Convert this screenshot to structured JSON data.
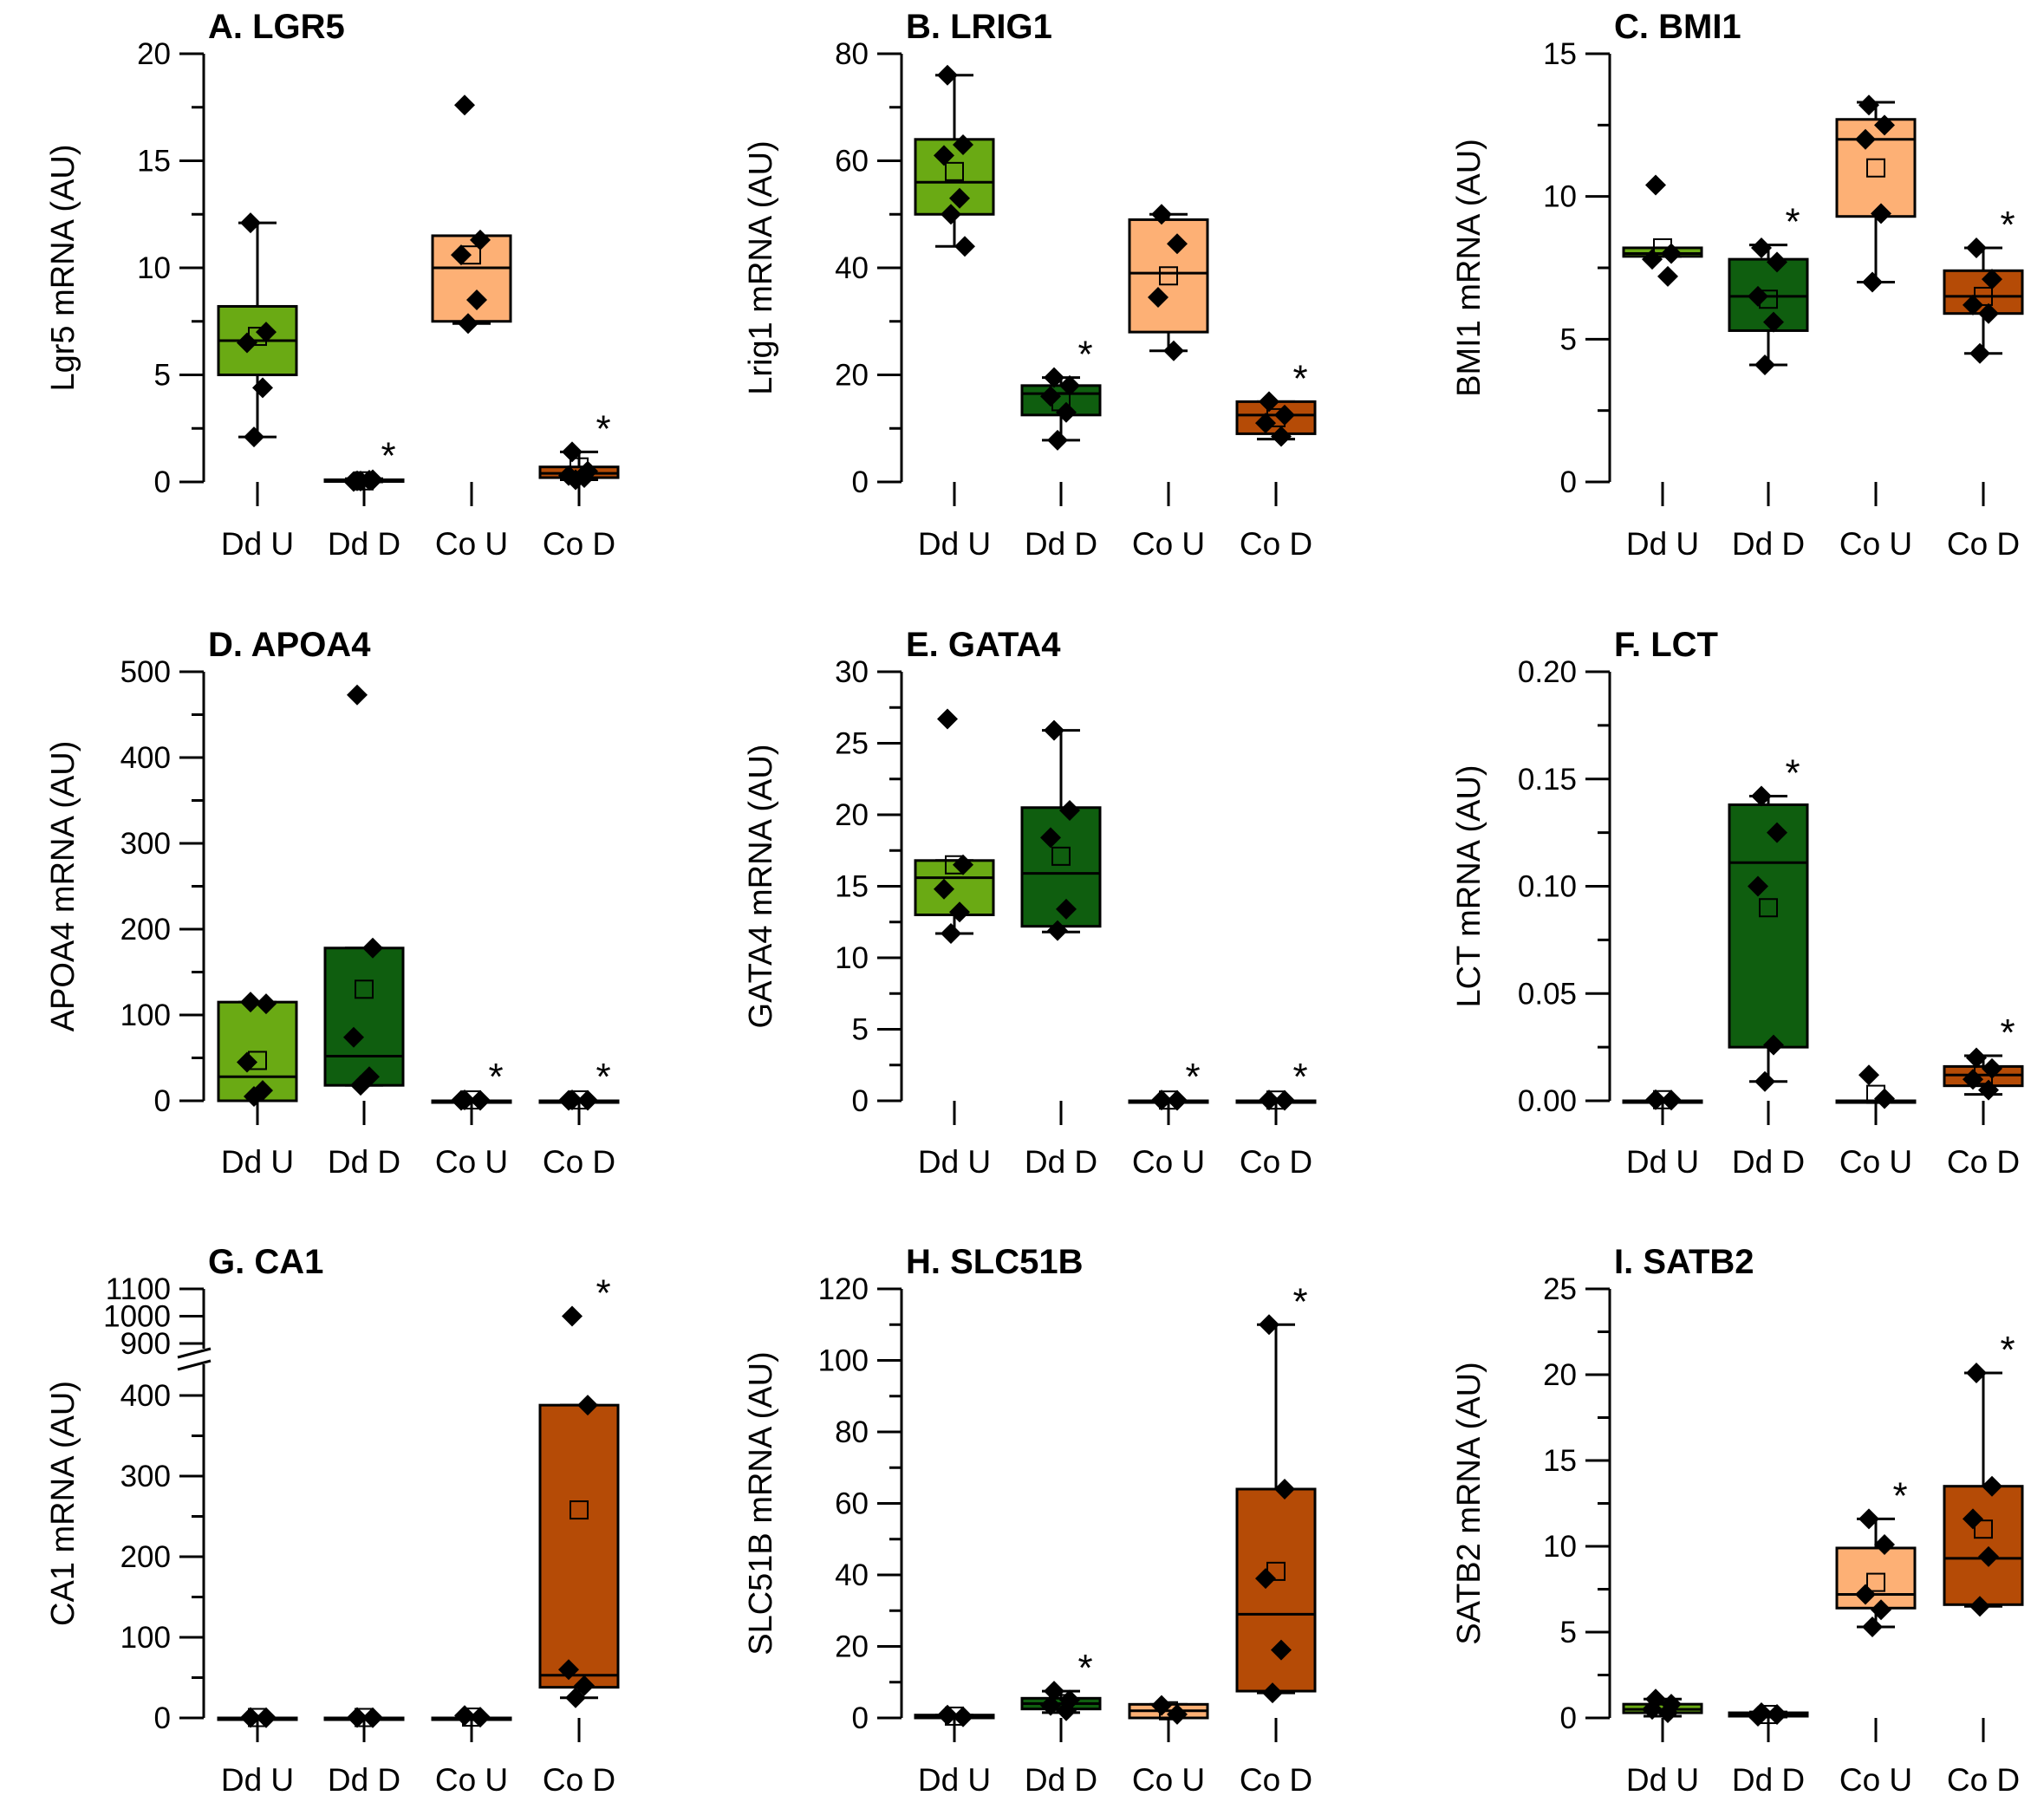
{
  "colors": {
    "Dd U": "#6aaa14",
    "Dd D": "#0f5e0f",
    "Co U": "#fdb075",
    "Co D": "#b54b06"
  },
  "chart_data": [
    {
      "type": "box",
      "title": "A. LGR5",
      "ylabel": "Lgr5 mRNA (AU)",
      "ylim": [
        0,
        20
      ],
      "yticks": [
        0,
        5,
        10,
        15,
        20
      ],
      "ytick_labels": [
        "0",
        "5",
        "10",
        "15",
        "20"
      ],
      "categories": [
        "Dd U",
        "Dd D",
        "Co U",
        "Co D"
      ],
      "boxes": [
        {
          "q1": 5.0,
          "median": 6.6,
          "q3": 8.2,
          "whisker_low": 2.1,
          "whisker_high": 12.1,
          "mean": 6.8,
          "points": [
            12.1,
            7.0,
            6.5,
            4.4,
            2.1
          ],
          "star": false
        },
        {
          "q1": 0.02,
          "median": 0.05,
          "q3": 0.1,
          "whisker_low": 0.0,
          "whisker_high": 0.15,
          "mean": 0.05,
          "points": [
            0.05,
            0.1,
            0.02,
            0.08,
            0.04
          ],
          "star": true
        },
        {
          "q1": 7.5,
          "median": 10.0,
          "q3": 11.5,
          "whisker_low": 7.4,
          "whisker_high": 11.5,
          "mean": 10.6,
          "points": [
            17.6,
            11.3,
            10.6,
            8.5,
            7.4
          ],
          "star": false
        },
        {
          "q1": 0.2,
          "median": 0.4,
          "q3": 0.7,
          "whisker_low": 0.1,
          "whisker_high": 1.4,
          "mean": 0.7,
          "points": [
            1.4,
            0.5,
            0.3,
            0.2,
            0.1
          ],
          "star": true
        }
      ]
    },
    {
      "type": "box",
      "title": "B. LRIG1",
      "ylabel": "Lrig1 mRNA (AU)",
      "ylim": [
        0,
        80
      ],
      "yticks": [
        0,
        20,
        40,
        60,
        80
      ],
      "ytick_labels": [
        "0",
        "20",
        "40",
        "60",
        "80"
      ],
      "categories": [
        "Dd U",
        "Dd D",
        "Co U",
        "Co D"
      ],
      "boxes": [
        {
          "q1": 50,
          "median": 56,
          "q3": 64,
          "whisker_low": 44,
          "whisker_high": 76,
          "mean": 58,
          "points": [
            76,
            63,
            61,
            53,
            50,
            44
          ],
          "star": false
        },
        {
          "q1": 12.5,
          "median": 16.5,
          "q3": 18,
          "whisker_low": 7.8,
          "whisker_high": 19.5,
          "mean": 15,
          "points": [
            19.5,
            18,
            16,
            13,
            7.8
          ],
          "star": true
        },
        {
          "q1": 28,
          "median": 39,
          "q3": 49,
          "whisker_low": 24.5,
          "whisker_high": 50,
          "mean": 38.5,
          "points": [
            50,
            44.5,
            34.5,
            24.5
          ],
          "star": false
        },
        {
          "q1": 9,
          "median": 12.5,
          "q3": 15,
          "whisker_low": 8,
          "whisker_high": 15,
          "mean": 12,
          "points": [
            15,
            12.5,
            11,
            8.5
          ],
          "star": true
        }
      ]
    },
    {
      "type": "box",
      "title": "C. BMI1",
      "ylabel": "BMI1 mRNA (AU)",
      "ylim": [
        0,
        15
      ],
      "yticks": [
        0,
        5,
        10,
        15
      ],
      "ytick_labels": [
        "0",
        "5",
        "10",
        "15"
      ],
      "categories": [
        "Dd U",
        "Dd D",
        "Co U",
        "Co D"
      ],
      "boxes": [
        {
          "q1": 7.9,
          "median": 8.0,
          "q3": 8.2,
          "whisker_low": 7.9,
          "whisker_high": 8.2,
          "mean": 8.2,
          "points": [
            10.4,
            8.0,
            7.8,
            7.2
          ],
          "star": false
        },
        {
          "q1": 5.3,
          "median": 6.5,
          "q3": 7.8,
          "whisker_low": 4.1,
          "whisker_high": 8.3,
          "mean": 6.4,
          "points": [
            8.2,
            7.7,
            6.5,
            5.6,
            4.1
          ],
          "star": true
        },
        {
          "q1": 9.3,
          "median": 12.0,
          "q3": 12.7,
          "whisker_low": 7.0,
          "whisker_high": 13.3,
          "mean": 11.0,
          "points": [
            13.2,
            12.5,
            12.0,
            9.4,
            7.0
          ],
          "star": false
        },
        {
          "q1": 5.9,
          "median": 6.5,
          "q3": 7.4,
          "whisker_low": 4.5,
          "whisker_high": 8.2,
          "mean": 6.5,
          "points": [
            8.2,
            7.1,
            6.2,
            5.9,
            4.5
          ],
          "star": true
        }
      ]
    },
    {
      "type": "box",
      "title": "D. APOA4",
      "ylabel": "APOA4 mRNA (AU)",
      "ylim": [
        0,
        500
      ],
      "yticks": [
        0,
        100,
        200,
        300,
        400,
        500
      ],
      "ytick_labels": [
        "0",
        "100",
        "200",
        "300",
        "400",
        "500"
      ],
      "categories": [
        "Dd U",
        "Dd D",
        "Co U",
        "Co D"
      ],
      "boxes": [
        {
          "q1": 0,
          "median": 28,
          "q3": 115,
          "whisker_low": 0,
          "whisker_high": 115,
          "mean": 47,
          "points": [
            115,
            113,
            45,
            12,
            5
          ],
          "star": false
        },
        {
          "q1": 18,
          "median": 52,
          "q3": 178,
          "whisker_low": 18,
          "whisker_high": 178,
          "mean": 130,
          "points": [
            473,
            178,
            74,
            28,
            18
          ],
          "star": false
        },
        {
          "q1": 0,
          "median": 0,
          "q3": 0,
          "whisker_low": 0,
          "whisker_high": 0,
          "mean": 1,
          "points": [
            1,
            0.5,
            0.5
          ],
          "star": true
        },
        {
          "q1": 0,
          "median": 0,
          "q3": 0,
          "whisker_low": 0,
          "whisker_high": 0,
          "mean": 1,
          "points": [
            1,
            0.5,
            0.5
          ],
          "star": true
        }
      ]
    },
    {
      "type": "box",
      "title": "E. GATA4",
      "ylabel": "GATA4 mRNA (AU)",
      "ylim": [
        0,
        30
      ],
      "yticks": [
        0,
        5,
        10,
        15,
        20,
        25,
        30
      ],
      "ytick_labels": [
        "0",
        "5",
        "10",
        "15",
        "20",
        "25",
        "30"
      ],
      "categories": [
        "Dd U",
        "Dd D",
        "Co U",
        "Co D"
      ],
      "boxes": [
        {
          "q1": 13,
          "median": 15.6,
          "q3": 16.8,
          "whisker_low": 11.7,
          "whisker_high": 16.8,
          "mean": 16.5,
          "points": [
            26.7,
            16.5,
            14.8,
            13.2,
            11.7
          ],
          "star": false
        },
        {
          "q1": 12.2,
          "median": 15.9,
          "q3": 20.5,
          "whisker_low": 11.8,
          "whisker_high": 25.9,
          "mean": 17.1,
          "points": [
            25.9,
            20.3,
            18.4,
            13.4,
            11.9
          ],
          "star": false
        },
        {
          "q1": 0,
          "median": 0,
          "q3": 0,
          "whisker_low": 0,
          "whisker_high": 0,
          "mean": 0.05,
          "points": [
            0.05,
            0.03
          ],
          "star": true
        },
        {
          "q1": 0,
          "median": 0,
          "q3": 0,
          "whisker_low": 0,
          "whisker_high": 0,
          "mean": 0.05,
          "points": [
            0.05,
            0.03
          ],
          "star": true
        }
      ]
    },
    {
      "type": "box",
      "title": "F. LCT",
      "ylabel": "LCT mRNA (AU)",
      "ylim": [
        0,
        0.2
      ],
      "yticks": [
        0,
        0.05,
        0.1,
        0.15,
        0.2
      ],
      "ytick_labels": [
        "0.00",
        "0.05",
        "0.10",
        "0.15",
        "0.20"
      ],
      "categories": [
        "Dd U",
        "Dd D",
        "Co U",
        "Co D"
      ],
      "boxes": [
        {
          "q1": 0,
          "median": 0,
          "q3": 0,
          "whisker_low": 0,
          "whisker_high": 0,
          "mean": 0.0005,
          "points": [
            0.0005,
            0.0003
          ],
          "star": false
        },
        {
          "q1": 0.025,
          "median": 0.111,
          "q3": 0.138,
          "whisker_low": 0.009,
          "whisker_high": 0.142,
          "mean": 0.09,
          "points": [
            0.142,
            0.125,
            0.1,
            0.026,
            0.009
          ],
          "star": true
        },
        {
          "q1": 0,
          "median": 0,
          "q3": 0,
          "whisker_low": 0,
          "whisker_high": 0,
          "mean": 0.003,
          "points": [
            0.012,
            0.001
          ],
          "star": false
        },
        {
          "q1": 0.007,
          "median": 0.012,
          "q3": 0.016,
          "whisker_low": 0.003,
          "whisker_high": 0.021,
          "mean": 0.012,
          "points": [
            0.02,
            0.015,
            0.01,
            0.005
          ],
          "star": true
        }
      ]
    },
    {
      "type": "box",
      "title": "G. CA1",
      "ylabel": "CA1 mRNA (AU)",
      "ylim": [
        0,
        1100
      ],
      "axis_break": [
        450,
        900
      ],
      "yticks": [
        0,
        100,
        200,
        300,
        400,
        900,
        1000,
        1100
      ],
      "ytick_labels": [
        "0",
        "100",
        "200",
        "300",
        "400",
        "900",
        "1000",
        "1100"
      ],
      "categories": [
        "Dd U",
        "Dd D",
        "Co U",
        "Co D"
      ],
      "boxes": [
        {
          "q1": 0,
          "median": 0,
          "q3": 0,
          "whisker_low": 0,
          "whisker_high": 0,
          "mean": 0.5,
          "points": [
            0.5,
            0.3
          ],
          "star": false
        },
        {
          "q1": 0,
          "median": 0,
          "q3": 0,
          "whisker_low": 0,
          "whisker_high": 0,
          "mean": 0.5,
          "points": [
            0.5,
            0.3
          ],
          "star": false
        },
        {
          "q1": 0,
          "median": 0,
          "q3": 0,
          "whisker_low": 0,
          "whisker_high": 0,
          "mean": 1,
          "points": [
            3,
            1
          ],
          "star": false
        },
        {
          "q1": 38,
          "median": 53,
          "q3": 388,
          "whisker_low": 25,
          "whisker_high": 388,
          "mean": 258,
          "points": [
            1000,
            388,
            60,
            40,
            25
          ],
          "star": true
        }
      ]
    },
    {
      "type": "box",
      "title": "H. SLC51B",
      "ylabel": "SLC51B mRNA (AU)",
      "ylim": [
        0,
        120
      ],
      "yticks": [
        0,
        20,
        40,
        60,
        80,
        100,
        120
      ],
      "ytick_labels": [
        "0",
        "20",
        "40",
        "60",
        "80",
        "100",
        "120"
      ],
      "categories": [
        "Dd U",
        "Dd D",
        "Co U",
        "Co D"
      ],
      "boxes": [
        {
          "q1": 0,
          "median": 0.3,
          "q3": 0.8,
          "whisker_low": 0,
          "whisker_high": 0.8,
          "mean": 0.5,
          "points": [
            0.8,
            0.3
          ],
          "star": false
        },
        {
          "q1": 2.5,
          "median": 4,
          "q3": 5.5,
          "whisker_low": 1.5,
          "whisker_high": 7.5,
          "mean": 4,
          "points": [
            7.5,
            5,
            3.5,
            2
          ],
          "star": true
        },
        {
          "q1": 0,
          "median": 2,
          "q3": 3.8,
          "whisker_low": 0,
          "whisker_high": 3.8,
          "mean": 2,
          "points": [
            3.5,
            1
          ],
          "star": false
        },
        {
          "q1": 7.5,
          "median": 29,
          "q3": 64,
          "whisker_low": 7,
          "whisker_high": 110,
          "mean": 41,
          "points": [
            110,
            64,
            39,
            19,
            7
          ],
          "star": true
        }
      ]
    },
    {
      "type": "box",
      "title": "I. SATB2",
      "ylabel": "SATB2 mRNA (AU)",
      "ylim": [
        0,
        25
      ],
      "yticks": [
        0,
        5,
        10,
        15,
        20,
        25
      ],
      "ytick_labels": [
        "0",
        "5",
        "10",
        "15",
        "20",
        "25"
      ],
      "categories": [
        "Dd U",
        "Dd D",
        "Co U",
        "Co D"
      ],
      "boxes": [
        {
          "q1": 0.3,
          "median": 0.5,
          "q3": 0.8,
          "whisker_low": 0.1,
          "whisker_high": 1.1,
          "mean": 0.6,
          "points": [
            1.1,
            0.8,
            0.5,
            0.3
          ],
          "star": false
        },
        {
          "q1": 0.1,
          "median": 0.2,
          "q3": 0.3,
          "whisker_low": 0.05,
          "whisker_high": 0.35,
          "mean": 0.2,
          "points": [
            0.3,
            0.2,
            0.1
          ],
          "star": false
        },
        {
          "q1": 6.4,
          "median": 7.2,
          "q3": 9.9,
          "whisker_low": 5.3,
          "whisker_high": 11.6,
          "mean": 7.9,
          "points": [
            11.6,
            10.1,
            7.2,
            6.3,
            5.3
          ],
          "star": true
        },
        {
          "q1": 6.6,
          "median": 9.3,
          "q3": 13.5,
          "whisker_low": 6.5,
          "whisker_high": 20.1,
          "mean": 11,
          "points": [
            20.1,
            13.5,
            11.6,
            9.4,
            6.5
          ],
          "star": true
        }
      ]
    }
  ]
}
